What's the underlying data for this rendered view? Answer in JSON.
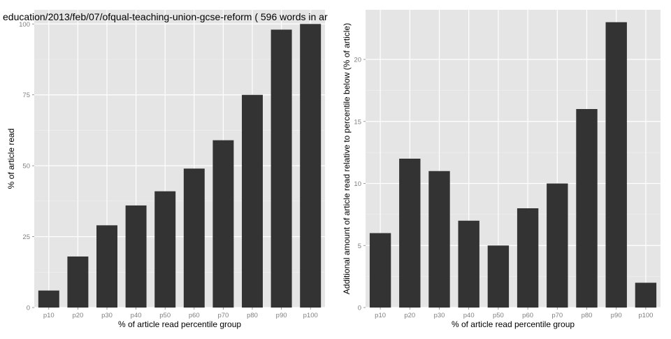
{
  "chart_data": [
    {
      "type": "bar",
      "title": "education/2013/feb/07/ofqual-teaching-union-gcse-reform ( 596 words in ar",
      "xlabel": "% of article read percentile group",
      "ylabel": "% of article read",
      "categories": [
        "p10",
        "p20",
        "p30",
        "p40",
        "p50",
        "p60",
        "p70",
        "p80",
        "p90",
        "p100"
      ],
      "values": [
        6,
        18,
        29,
        36,
        41,
        49,
        59,
        75,
        98,
        100
      ],
      "yticks": [
        0,
        25,
        50,
        75,
        100
      ],
      "ylim": [
        0,
        105
      ],
      "grid": true,
      "colors": {
        "bar": "#333333",
        "panel": "#e5e5e5",
        "grid": "#ffffff",
        "tick_text": "#7f7f7f"
      }
    },
    {
      "type": "bar",
      "title": "",
      "xlabel": "% of article read percentile group",
      "ylabel": "Additional amount of article read relative to percentile below (% of article)",
      "categories": [
        "p10",
        "p20",
        "p30",
        "p40",
        "p50",
        "p60",
        "p70",
        "p80",
        "p90",
        "p100"
      ],
      "values": [
        6,
        12,
        11,
        7,
        5,
        8,
        10,
        16,
        23,
        2
      ],
      "yticks": [
        0,
        5,
        10,
        15,
        20
      ],
      "ylim": [
        0,
        24
      ],
      "grid": true,
      "colors": {
        "bar": "#333333",
        "panel": "#e5e5e5",
        "grid": "#ffffff",
        "tick_text": "#7f7f7f"
      }
    }
  ]
}
